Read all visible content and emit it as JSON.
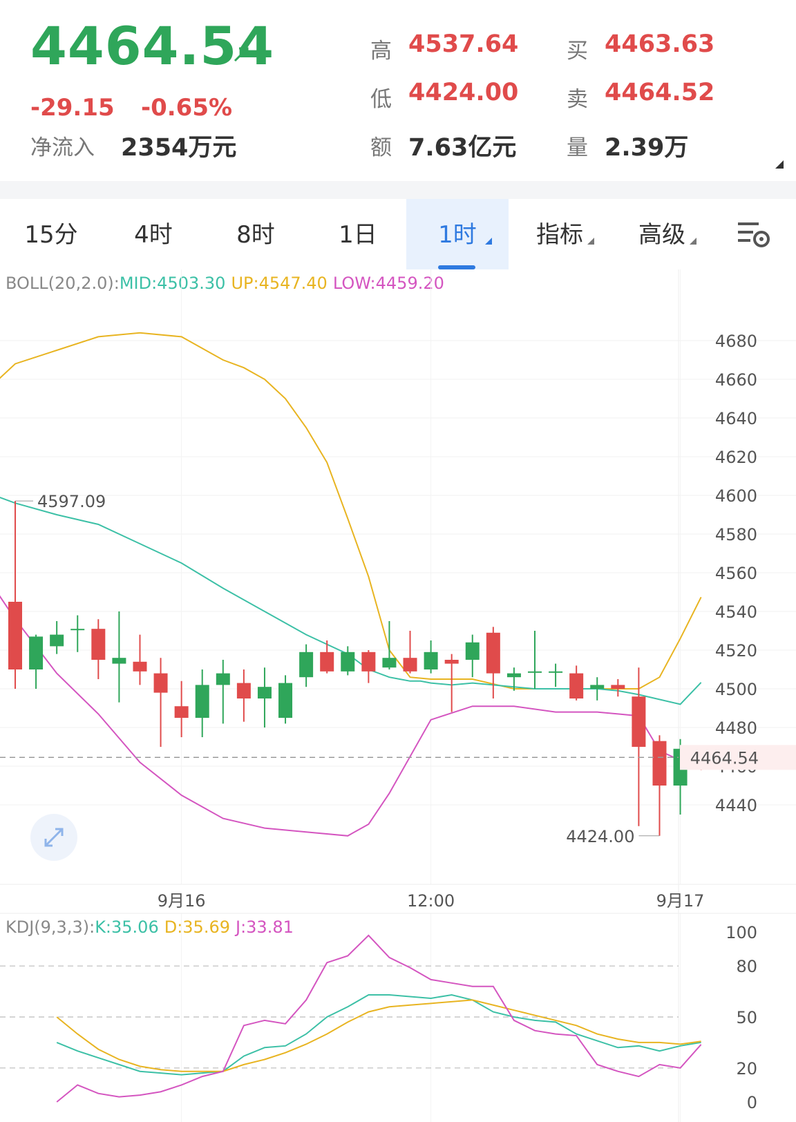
{
  "quote": {
    "last_price": "4464.54",
    "change": "-29.15",
    "change_pct": "-0.65%",
    "net_inflow_label": "净流入",
    "net_inflow_value": "2354万元",
    "high_label": "高",
    "high_value": "4537.64",
    "low_label": "低",
    "low_value": "4424.00",
    "amount_label": "额",
    "amount_value": "7.63亿元",
    "bid_label": "买",
    "bid_value": "4463.63",
    "ask_label": "卖",
    "ask_value": "4464.52",
    "volume_label": "量",
    "volume_value": "2.39万"
  },
  "tabs": [
    {
      "label": "15分",
      "active": false,
      "dropdown": false
    },
    {
      "label": "4时",
      "active": false,
      "dropdown": false
    },
    {
      "label": "8时",
      "active": false,
      "dropdown": false
    },
    {
      "label": "1日",
      "active": false,
      "dropdown": false
    },
    {
      "label": "1时",
      "active": true,
      "dropdown": true
    },
    {
      "label": "指标",
      "active": false,
      "dropdown": true
    },
    {
      "label": "高级",
      "active": false,
      "dropdown": true
    }
  ],
  "icons": {
    "settings": "chart-settings-icon",
    "expand": "expand-icon"
  },
  "colors": {
    "up": "#e04b4b",
    "down": "#2fa65a",
    "mid": "#3cc0a6",
    "upper": "#e8b421",
    "lower": "#d455c0",
    "accent": "#2f7ae0"
  },
  "chart_data": [
    {
      "type": "candlestick",
      "indicator_label": "BOLL(20,2.0):",
      "mid_label": "MID:4503.30",
      "up_label": "UP:4547.40",
      "low_label": "LOW:4459.20",
      "y_ticks": [
        4440,
        4460,
        4480,
        4500,
        4520,
        4540,
        4560,
        4580,
        4600,
        4620,
        4640,
        4660,
        4680
      ],
      "ylim": [
        4415,
        4700
      ],
      "x_labels": [
        {
          "index": 8,
          "label": "9月16"
        },
        {
          "index": 20,
          "label": "12:00"
        },
        {
          "index": 32,
          "label": "9月17"
        }
      ],
      "current_price_label": "4464.54",
      "max_label": "4597.09",
      "min_label": "4424.00",
      "candles": [
        {
          "o": 4545,
          "h": 4597.09,
          "l": 4500,
          "c": 4510
        },
        {
          "o": 4510,
          "h": 4528,
          "l": 4500,
          "c": 4527
        },
        {
          "o": 4522,
          "h": 4535,
          "l": 4518,
          "c": 4528
        },
        {
          "o": 4531,
          "h": 4538,
          "l": 4519,
          "c": 4531
        },
        {
          "o": 4531,
          "h": 4536,
          "l": 4505,
          "c": 4515
        },
        {
          "o": 4513,
          "h": 4540,
          "l": 4493,
          "c": 4516
        },
        {
          "o": 4514,
          "h": 4528,
          "l": 4502,
          "c": 4509
        },
        {
          "o": 4508,
          "h": 4516,
          "l": 4470,
          "c": 4498
        },
        {
          "o": 4491,
          "h": 4504,
          "l": 4475,
          "c": 4485
        },
        {
          "o": 4485,
          "h": 4510,
          "l": 4475,
          "c": 4502
        },
        {
          "o": 4502,
          "h": 4515,
          "l": 4482,
          "c": 4508
        },
        {
          "o": 4503,
          "h": 4510,
          "l": 4483,
          "c": 4495
        },
        {
          "o": 4495,
          "h": 4511,
          "l": 4480,
          "c": 4501
        },
        {
          "o": 4485,
          "h": 4507,
          "l": 4482,
          "c": 4503
        },
        {
          "o": 4506,
          "h": 4523,
          "l": 4501,
          "c": 4519
        },
        {
          "o": 4519,
          "h": 4525,
          "l": 4508,
          "c": 4509
        },
        {
          "o": 4509,
          "h": 4522,
          "l": 4507,
          "c": 4519
        },
        {
          "o": 4519,
          "h": 4520,
          "l": 4503,
          "c": 4509
        },
        {
          "o": 4511,
          "h": 4535,
          "l": 4510,
          "c": 4516
        },
        {
          "o": 4516,
          "h": 4530,
          "l": 4508,
          "c": 4509
        },
        {
          "o": 4510,
          "h": 4525,
          "l": 4508,
          "c": 4519
        },
        {
          "o": 4515,
          "h": 4518,
          "l": 4488,
          "c": 4513
        },
        {
          "o": 4515,
          "h": 4528,
          "l": 4506,
          "c": 4524
        },
        {
          "o": 4529,
          "h": 4532,
          "l": 4495,
          "c": 4508
        },
        {
          "o": 4506,
          "h": 4511,
          "l": 4499,
          "c": 4508
        },
        {
          "o": 4509,
          "h": 4530,
          "l": 4500,
          "c": 4509
        },
        {
          "o": 4509,
          "h": 4513,
          "l": 4501,
          "c": 4509
        },
        {
          "o": 4508,
          "h": 4512,
          "l": 4494,
          "c": 4495
        },
        {
          "o": 4500,
          "h": 4506,
          "l": 4494,
          "c": 4502
        },
        {
          "o": 4502,
          "h": 4505,
          "l": 4496,
          "c": 4500
        },
        {
          "o": 4496,
          "h": 4511,
          "l": 4429,
          "c": 4470
        },
        {
          "o": 4473,
          "h": 4476,
          "l": 4424,
          "c": 4450
        },
        {
          "o": 4450,
          "h": 4474,
          "l": 4435,
          "c": 4469
        },
        {
          "o": 4467,
          "h": 4470,
          "l": 4458,
          "c": 4464.54
        }
      ],
      "boll_mid": [
        4524,
        4560,
        4555,
        4548,
        4542,
        4531,
        4518,
        4504,
        4495,
        4484,
        4470,
        4457,
        4449,
        4440,
        4429,
        4517,
        4517,
        4515,
        4512,
        4512,
        4511,
        4510,
        4509,
        4509,
        4510,
        4509,
        4504,
        4503.3
      ],
      "mid_x": [
        -1,
        0,
        2,
        4,
        6,
        8,
        10,
        12,
        14,
        16,
        17,
        18,
        18.5,
        19,
        19.5,
        20,
        21,
        22,
        23,
        24,
        25,
        26,
        27,
        28,
        29,
        30,
        32,
        33
      ],
      "mid_y": [
        4600,
        4596,
        4590,
        4585,
        4575,
        4565,
        4552,
        4540,
        4528,
        4518,
        4510,
        4506,
        4505,
        4504,
        4504,
        4503,
        4502,
        4503,
        4502,
        4501,
        4500,
        4500,
        4500,
        4500,
        4499,
        4497,
        4492,
        4503.3
      ],
      "upper_x": [
        -1,
        0,
        2,
        4,
        6,
        8,
        10,
        11,
        12,
        13,
        14,
        15,
        16,
        17,
        18,
        19,
        20,
        22,
        24,
        26,
        28,
        30,
        31,
        32,
        33
      ],
      "upper_y": [
        4658,
        4668,
        4675,
        4682,
        4684,
        4682,
        4670,
        4666,
        4660,
        4650,
        4635,
        4617,
        4588,
        4558,
        4520,
        4506,
        4505,
        4505,
        4500,
        4500,
        4500,
        4500,
        4506,
        4526,
        4547.4
      ],
      "lower_x": [
        -1,
        0,
        2,
        4,
        6,
        8,
        10,
        12,
        14,
        16,
        17,
        18,
        20,
        22,
        24,
        26,
        28,
        30,
        31,
        32,
        33
      ],
      "lower_y": [
        4552,
        4536,
        4508,
        4487,
        4462,
        4445,
        4433,
        4428,
        4426,
        4424,
        4430,
        4446,
        4484,
        4491,
        4491,
        4488,
        4488,
        4486,
        4468,
        4463,
        4459.2
      ]
    },
    {
      "type": "line",
      "indicator_label": "KDJ(9,3,3):",
      "k_label": "K:35.06",
      "d_label": "D:35.69",
      "j_label": "J:33.81",
      "y_ticks": [
        0,
        20,
        50,
        80,
        100
      ],
      "ylim": [
        0,
        100
      ],
      "guides": [
        20,
        50,
        80
      ],
      "series": [
        {
          "name": "K",
          "values": [
            35,
            30,
            26,
            22,
            18,
            17,
            16,
            17,
            18,
            27,
            32,
            33,
            40,
            50,
            56,
            63,
            63,
            62,
            61,
            63,
            60,
            53,
            50,
            48,
            47,
            40,
            36,
            32,
            33,
            30,
            33,
            35.06
          ]
        },
        {
          "name": "D",
          "values": [
            50,
            40,
            31,
            25,
            21,
            19,
            18,
            18,
            18,
            22,
            25,
            29,
            34,
            40,
            47,
            53,
            56,
            57,
            58,
            59,
            60,
            57,
            54,
            51,
            48,
            45,
            40,
            37,
            35,
            35,
            34,
            35.69
          ]
        },
        {
          "name": "J",
          "values": [
            0,
            10,
            5,
            3,
            4,
            6,
            10,
            15,
            18,
            45,
            48,
            46,
            60,
            82,
            86,
            98,
            85,
            79,
            72,
            70,
            68,
            68,
            48,
            42,
            40,
            39,
            22,
            18,
            15,
            22,
            20,
            33.81
          ]
        }
      ]
    }
  ]
}
